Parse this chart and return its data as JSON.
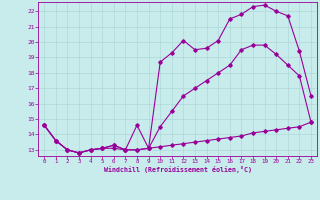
{
  "xlabel": "Windchill (Refroidissement éolien,°C)",
  "background_color": "#c8ecec",
  "grid_color": "#b0d8d8",
  "line_color": "#990099",
  "xlim": [
    -0.5,
    23.5
  ],
  "ylim": [
    12.6,
    22.6
  ],
  "xticks": [
    0,
    1,
    2,
    3,
    4,
    5,
    6,
    7,
    8,
    9,
    10,
    11,
    12,
    13,
    14,
    15,
    16,
    17,
    18,
    19,
    20,
    21,
    22,
    23
  ],
  "yticks": [
    13,
    14,
    15,
    16,
    17,
    18,
    19,
    20,
    21,
    22
  ],
  "line1_x": [
    0,
    1,
    2,
    3,
    4,
    5,
    6,
    7,
    8,
    9,
    10,
    11,
    12,
    13,
    14,
    15,
    16,
    17,
    18,
    19,
    20,
    21,
    22,
    23
  ],
  "line1_y": [
    14.6,
    13.6,
    13.0,
    12.8,
    13.0,
    13.1,
    13.1,
    13.0,
    13.0,
    13.1,
    13.2,
    13.3,
    13.4,
    13.5,
    13.6,
    13.7,
    13.8,
    13.9,
    14.1,
    14.2,
    14.3,
    14.4,
    14.5,
    14.8
  ],
  "line2_x": [
    0,
    1,
    2,
    3,
    4,
    5,
    6,
    7,
    8,
    9,
    10,
    11,
    12,
    13,
    14,
    15,
    16,
    17,
    18,
    19,
    20,
    21,
    22,
    23
  ],
  "line2_y": [
    14.6,
    13.6,
    13.0,
    12.8,
    13.0,
    13.1,
    13.3,
    13.0,
    14.6,
    13.1,
    18.7,
    19.3,
    20.1,
    19.5,
    19.6,
    20.1,
    21.5,
    21.8,
    22.3,
    22.4,
    22.0,
    21.7,
    19.4,
    16.5
  ],
  "line3_x": [
    0,
    1,
    2,
    3,
    4,
    5,
    6,
    7,
    8,
    9,
    10,
    11,
    12,
    13,
    14,
    15,
    16,
    17,
    18,
    19,
    20,
    21,
    22,
    23
  ],
  "line3_y": [
    14.6,
    13.6,
    13.0,
    12.8,
    13.0,
    13.1,
    13.3,
    13.0,
    13.0,
    13.1,
    14.5,
    15.5,
    16.5,
    17.0,
    17.5,
    18.0,
    18.5,
    19.5,
    19.8,
    19.8,
    19.2,
    18.5,
    17.8,
    14.8
  ]
}
